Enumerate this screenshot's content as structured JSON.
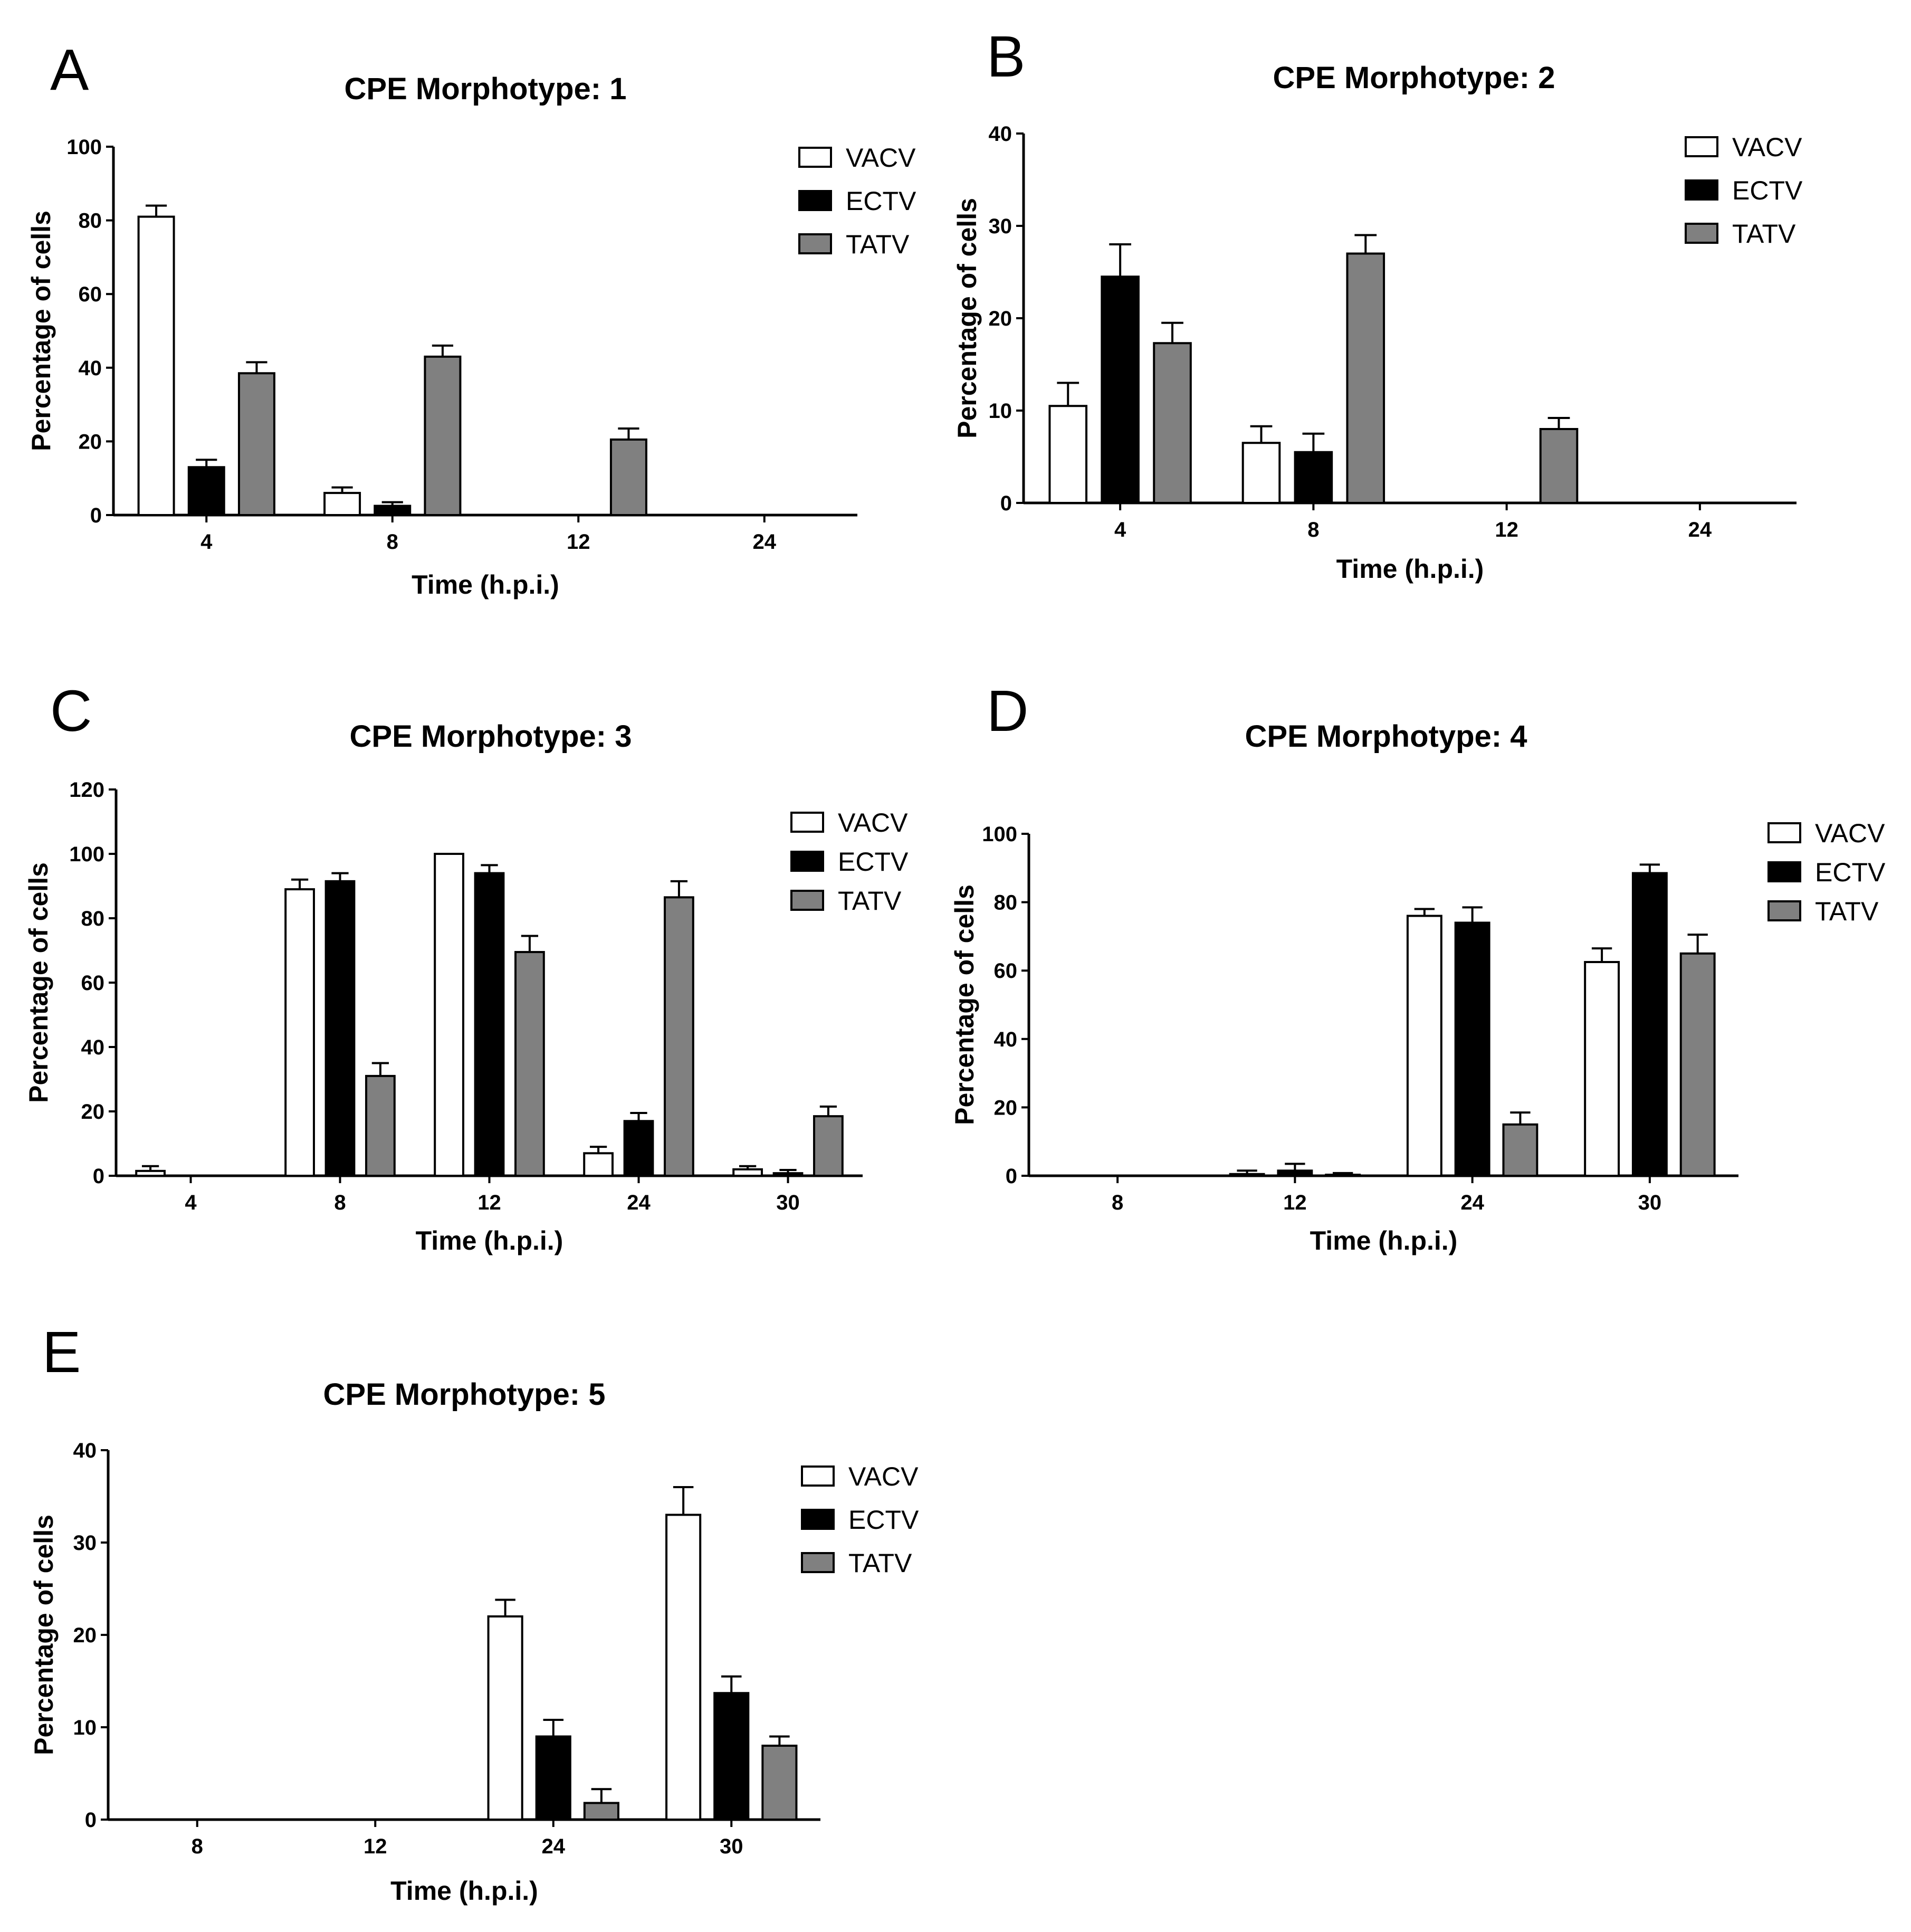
{
  "figure": {
    "series_styles": [
      {
        "name": "VACV",
        "fill": "#ffffff"
      },
      {
        "name": "ECTV",
        "fill": "#000000"
      },
      {
        "name": "TATV",
        "fill": "#808080"
      }
    ]
  },
  "chart_data": [
    {
      "panel": "A",
      "type": "bar",
      "title": "CPE Morphotype: 1",
      "xlabel": "Time (h.p.i.)",
      "ylabel": "Percentage of cells",
      "categories": [
        "4",
        "8",
        "12",
        "24"
      ],
      "ylim": [
        0,
        100
      ],
      "yticks": [
        0,
        20,
        40,
        60,
        80,
        100
      ],
      "series": [
        {
          "name": "VACV",
          "values": [
            81,
            6,
            0,
            0
          ],
          "errors": [
            3,
            1.5,
            0,
            0
          ]
        },
        {
          "name": "ECTV",
          "values": [
            13,
            2.5,
            0,
            0
          ],
          "errors": [
            2,
            1,
            0,
            0
          ]
        },
        {
          "name": "TATV",
          "values": [
            38.5,
            43,
            20.5,
            0
          ],
          "errors": [
            3,
            3,
            3,
            0
          ]
        }
      ]
    },
    {
      "panel": "B",
      "type": "bar",
      "title": "CPE Morphotype: 2",
      "xlabel": "Time (h.p.i.)",
      "ylabel": "Percentage of cells",
      "categories": [
        "4",
        "8",
        "12",
        "24"
      ],
      "ylim": [
        0,
        40
      ],
      "yticks": [
        0,
        10,
        20,
        30,
        40
      ],
      "series": [
        {
          "name": "VACV",
          "values": [
            10.5,
            6.5,
            0,
            0
          ],
          "errors": [
            2.5,
            1.8,
            0,
            0
          ]
        },
        {
          "name": "ECTV",
          "values": [
            24.5,
            5.5,
            0,
            0
          ],
          "errors": [
            3.5,
            2,
            0,
            0
          ]
        },
        {
          "name": "TATV",
          "values": [
            17.3,
            27,
            8,
            0
          ],
          "errors": [
            2.2,
            2,
            1.2,
            0
          ]
        }
      ]
    },
    {
      "panel": "C",
      "type": "bar",
      "title": "CPE Morphotype: 3",
      "xlabel": "Time (h.p.i.)",
      "ylabel": "Percentage of cells",
      "categories": [
        "4",
        "8",
        "12",
        "24",
        "30"
      ],
      "ylim": [
        0,
        120
      ],
      "yticks": [
        0,
        20,
        40,
        60,
        80,
        100,
        120
      ],
      "series": [
        {
          "name": "VACV",
          "values": [
            1.5,
            89,
            100,
            7,
            2
          ],
          "errors": [
            1.5,
            3,
            0,
            2,
            1
          ]
        },
        {
          "name": "ECTV",
          "values": [
            0,
            91.5,
            94,
            17,
            0.8
          ],
          "errors": [
            0,
            2.5,
            2.5,
            2.5,
            1
          ]
        },
        {
          "name": "TATV",
          "values": [
            0,
            31,
            69.5,
            86.5,
            18.5
          ],
          "errors": [
            0,
            4,
            5,
            5,
            3
          ]
        }
      ]
    },
    {
      "panel": "D",
      "type": "bar",
      "title": "CPE Morphotype: 4",
      "xlabel": "Time (h.p.i.)",
      "ylabel": "Percentage of cells",
      "categories": [
        "8",
        "12",
        "24",
        "30"
      ],
      "ylim": [
        0,
        100
      ],
      "yticks": [
        0,
        20,
        40,
        60,
        80,
        100
      ],
      "series": [
        {
          "name": "VACV",
          "values": [
            0,
            0.5,
            76,
            62.5
          ],
          "errors": [
            0,
            1,
            2,
            4
          ]
        },
        {
          "name": "ECTV",
          "values": [
            0,
            1.5,
            74,
            88.5
          ],
          "errors": [
            0,
            2,
            4.5,
            2.5
          ]
        },
        {
          "name": "TATV",
          "values": [
            0,
            0.3,
            15,
            65
          ],
          "errors": [
            0,
            0.5,
            3.5,
            5.5
          ]
        }
      ]
    },
    {
      "panel": "E",
      "type": "bar",
      "title": "CPE Morphotype: 5",
      "xlabel": "Time (h.p.i.)",
      "ylabel": "Percentage of cells",
      "categories": [
        "8",
        "12",
        "24",
        "30"
      ],
      "ylim": [
        0,
        40
      ],
      "yticks": [
        0,
        10,
        20,
        30,
        40
      ],
      "series": [
        {
          "name": "VACV",
          "values": [
            0,
            0,
            22,
            33
          ],
          "errors": [
            0,
            0,
            1.8,
            3
          ]
        },
        {
          "name": "ECTV",
          "values": [
            0,
            0,
            9,
            13.7
          ],
          "errors": [
            0,
            0,
            1.8,
            1.8
          ]
        },
        {
          "name": "TATV",
          "values": [
            0,
            0,
            1.8,
            8
          ],
          "errors": [
            0,
            0,
            1.5,
            1
          ]
        }
      ]
    }
  ]
}
